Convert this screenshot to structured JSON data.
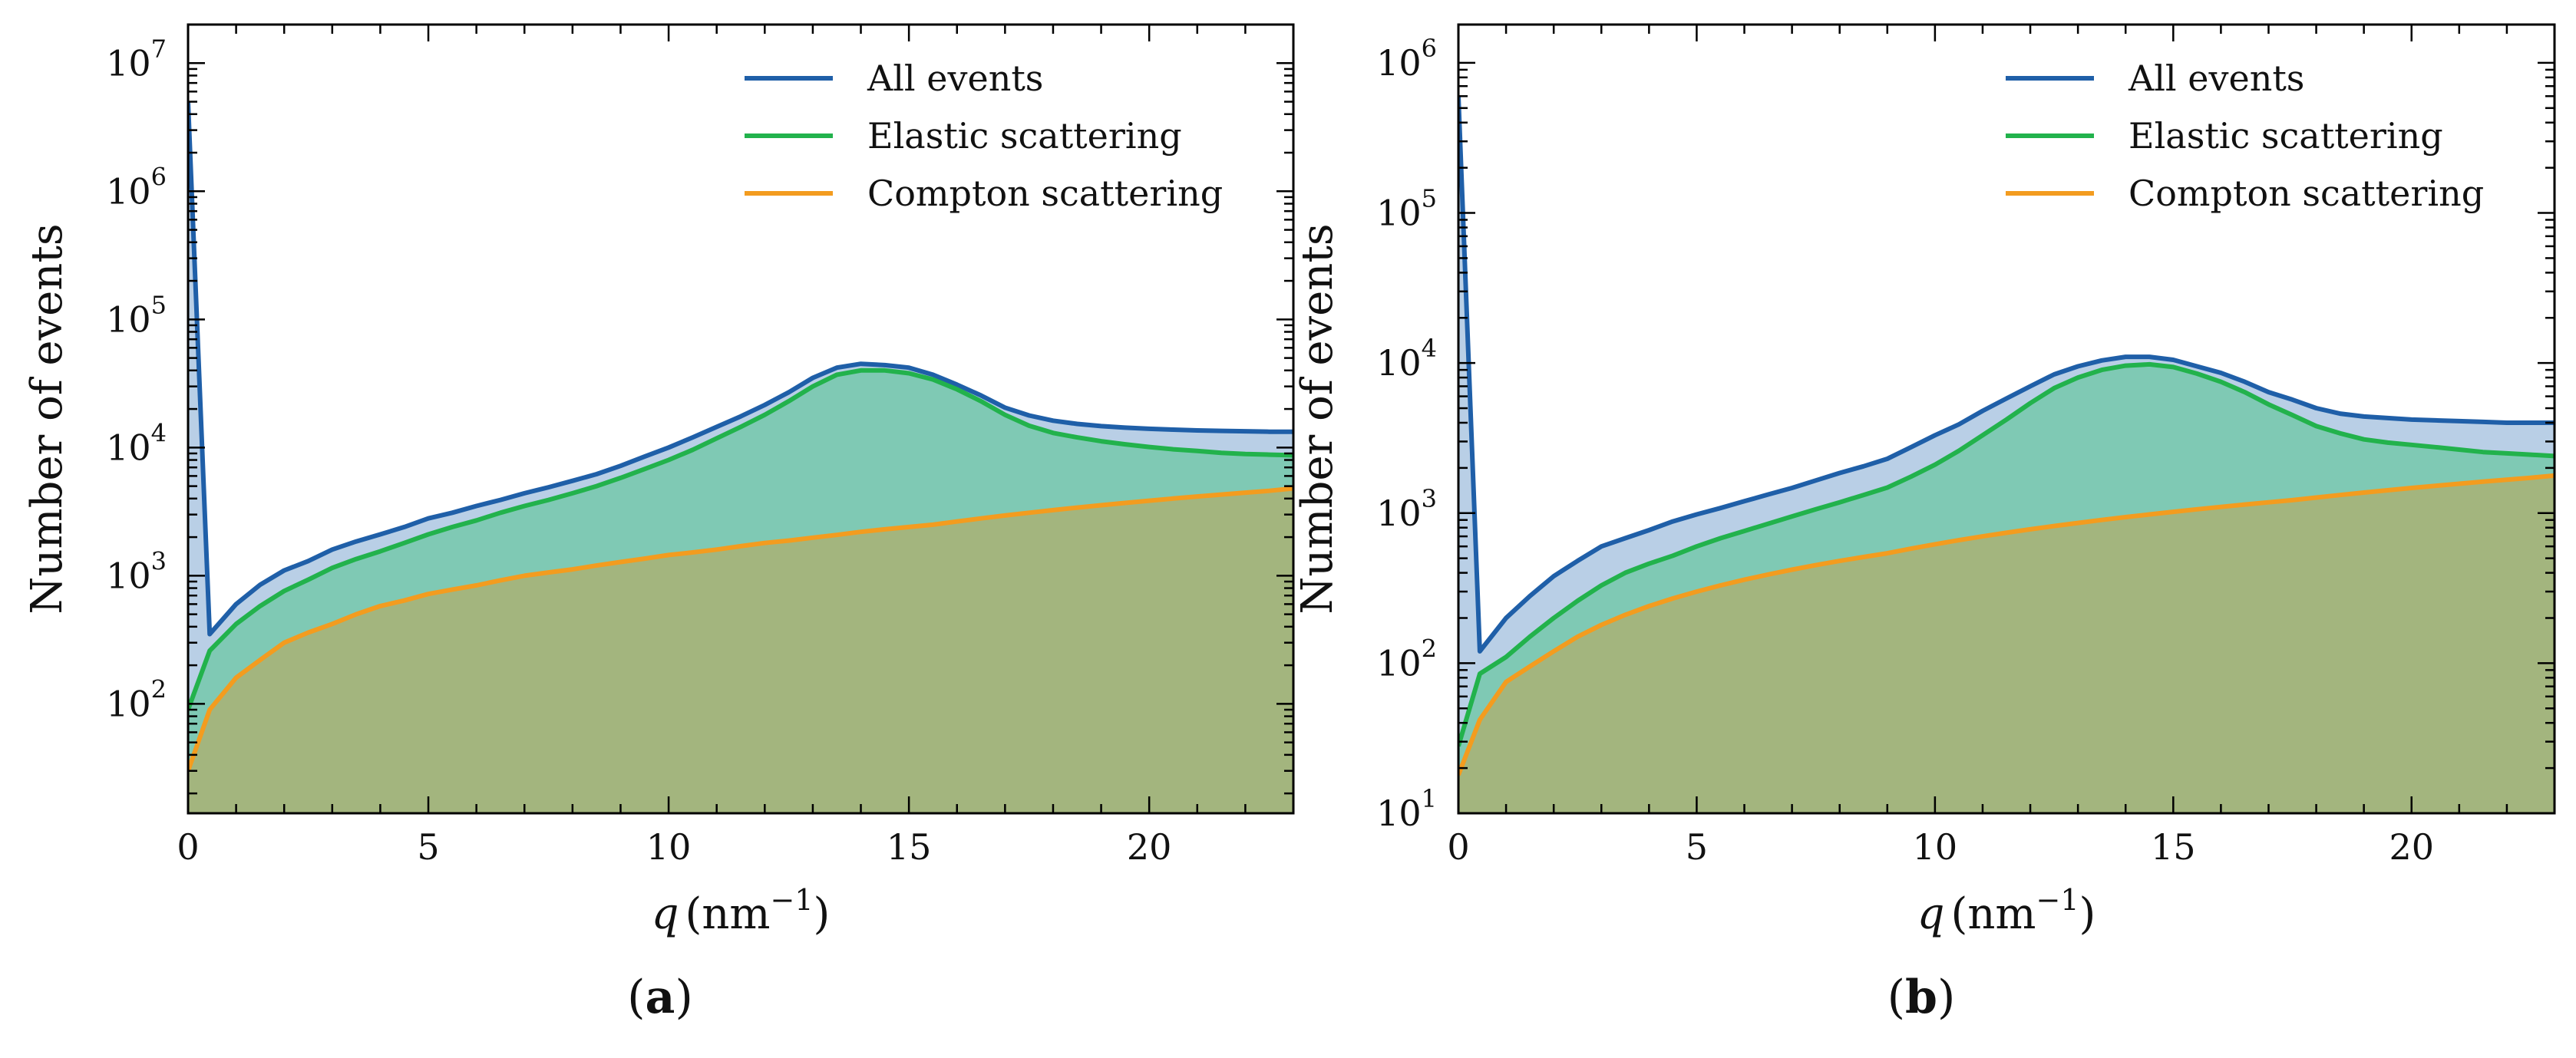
{
  "figure": {
    "panels": [
      "a",
      "b"
    ]
  },
  "colors": {
    "all_events": "#1f5fa8",
    "elastic": "#22b24c",
    "compton": "#f39c1f",
    "fill_all": "#b9cfe6",
    "fill_elastic": "#7fc9b4",
    "fill_compton": "#a3b57e"
  },
  "chart_data": [
    {
      "type": "line",
      "panel_label": "a",
      "title": "",
      "xlabel_var": "q",
      "xlabel_unit": "nm",
      "xlabel_exp": "−1",
      "ylabel": "Number of events",
      "xlim": [
        0,
        23
      ],
      "ylim": [
        14,
        20000000
      ],
      "yscale": "log",
      "xticks": [
        0,
        5,
        10,
        15,
        20
      ],
      "xtick_labels": [
        "0",
        "5",
        "10",
        "15",
        "20"
      ],
      "yticks": [
        100,
        1000,
        10000,
        100000,
        1000000,
        10000000
      ],
      "ytick_labels": [
        {
          "base": "10",
          "exp": "2"
        },
        {
          "base": "10",
          "exp": "3"
        },
        {
          "base": "10",
          "exp": "4"
        },
        {
          "base": "10",
          "exp": "5"
        },
        {
          "base": "10",
          "exp": "6"
        },
        {
          "base": "10",
          "exp": "7"
        }
      ],
      "legend_position": "top-right",
      "series": [
        {
          "name": "All events",
          "color_key": "all_events",
          "x": [
            0,
            0.45,
            1.0,
            1.5,
            2.0,
            2.5,
            3.0,
            3.5,
            4.0,
            4.5,
            5.0,
            5.5,
            6.0,
            6.5,
            7.0,
            7.5,
            8.0,
            8.5,
            9.0,
            9.5,
            10.0,
            10.5,
            11.0,
            11.5,
            12.0,
            12.5,
            13.0,
            13.5,
            14.0,
            14.5,
            15.0,
            15.5,
            16.0,
            16.5,
            17.0,
            17.5,
            18.0,
            18.5,
            19.0,
            19.5,
            20.0,
            20.5,
            21.0,
            21.5,
            22.0,
            22.5,
            23.0
          ],
          "y": [
            5000000,
            350,
            600,
            850,
            1100,
            1300,
            1600,
            1850,
            2100,
            2400,
            2800,
            3100,
            3500,
            3900,
            4400,
            4900,
            5500,
            6200,
            7200,
            8500,
            10000,
            12000,
            14500,
            17500,
            21500,
            27000,
            35000,
            42000,
            45000,
            44000,
            42000,
            37000,
            31000,
            25500,
            20500,
            17800,
            16200,
            15300,
            14700,
            14300,
            14000,
            13800,
            13600,
            13500,
            13400,
            13300,
            13300
          ]
        },
        {
          "name": "Elastic scattering",
          "color_key": "elastic",
          "x": [
            0,
            0.45,
            1.0,
            1.5,
            2.0,
            2.5,
            3.0,
            3.5,
            4.0,
            4.5,
            5.0,
            5.5,
            6.0,
            6.5,
            7.0,
            7.5,
            8.0,
            8.5,
            9.0,
            9.5,
            10.0,
            10.5,
            11.0,
            11.5,
            12.0,
            12.5,
            13.0,
            13.5,
            14.0,
            14.5,
            15.0,
            15.5,
            16.0,
            16.5,
            17.0,
            17.5,
            18.0,
            18.5,
            19.0,
            19.5,
            20.0,
            20.5,
            21.0,
            21.5,
            22.0,
            22.5,
            23.0
          ],
          "y": [
            90,
            260,
            420,
            580,
            760,
            930,
            1150,
            1350,
            1550,
            1800,
            2100,
            2400,
            2700,
            3100,
            3500,
            3900,
            4400,
            5000,
            5800,
            6800,
            8000,
            9600,
            11800,
            14500,
            18000,
            23000,
            30000,
            37000,
            40000,
            40000,
            38000,
            34000,
            28500,
            23000,
            18000,
            14800,
            13000,
            12000,
            11200,
            10600,
            10100,
            9700,
            9400,
            9100,
            8900,
            8800,
            8700
          ]
        },
        {
          "name": "Compton scattering",
          "color_key": "compton",
          "x": [
            0,
            0.45,
            1.0,
            1.5,
            2.0,
            2.5,
            3.0,
            3.5,
            4.0,
            4.5,
            5.0,
            5.5,
            6.0,
            6.5,
            7.0,
            7.5,
            8.0,
            8.5,
            9.0,
            9.5,
            10.0,
            10.5,
            11.0,
            11.5,
            12.0,
            12.5,
            13.0,
            13.5,
            14.0,
            14.5,
            15.0,
            15.5,
            16.0,
            16.5,
            17.0,
            17.5,
            18.0,
            18.5,
            19.0,
            19.5,
            20.0,
            20.5,
            21.0,
            21.5,
            22.0,
            22.5,
            23.0
          ],
          "y": [
            30,
            90,
            160,
            220,
            300,
            360,
            420,
            500,
            580,
            640,
            720,
            780,
            840,
            920,
            1000,
            1060,
            1120,
            1200,
            1280,
            1360,
            1450,
            1520,
            1600,
            1700,
            1800,
            1880,
            1980,
            2080,
            2200,
            2300,
            2400,
            2500,
            2650,
            2800,
            2950,
            3100,
            3250,
            3400,
            3550,
            3700,
            3850,
            4000,
            4150,
            4300,
            4450,
            4600,
            4800
          ]
        }
      ]
    },
    {
      "type": "line",
      "panel_label": "b",
      "title": "",
      "xlabel_var": "q",
      "xlabel_unit": "nm",
      "xlabel_exp": "−1",
      "ylabel": "Number of events",
      "xlim": [
        0,
        23
      ],
      "ylim": [
        10,
        1800000
      ],
      "yscale": "log",
      "xticks": [
        0,
        5,
        10,
        15,
        20
      ],
      "xtick_labels": [
        "0",
        "5",
        "10",
        "15",
        "20"
      ],
      "yticks": [
        10,
        100,
        1000,
        10000,
        100000,
        1000000
      ],
      "ytick_labels": [
        {
          "base": "10",
          "exp": "1"
        },
        {
          "base": "10",
          "exp": "2"
        },
        {
          "base": "10",
          "exp": "3"
        },
        {
          "base": "10",
          "exp": "4"
        },
        {
          "base": "10",
          "exp": "5"
        },
        {
          "base": "10",
          "exp": "6"
        }
      ],
      "legend_position": "top-right",
      "series": [
        {
          "name": "All events",
          "color_key": "all_events",
          "x": [
            0,
            0.45,
            1.0,
            1.5,
            2.0,
            2.5,
            3.0,
            3.5,
            4.0,
            4.5,
            5.0,
            5.5,
            6.0,
            6.5,
            7.0,
            7.5,
            8.0,
            8.5,
            9.0,
            9.5,
            10.0,
            10.5,
            11.0,
            11.5,
            12.0,
            12.5,
            13.0,
            13.5,
            14.0,
            14.5,
            15.0,
            15.5,
            16.0,
            16.5,
            17.0,
            17.5,
            18.0,
            18.5,
            19.0,
            19.5,
            20.0,
            20.5,
            21.0,
            21.5,
            22.0,
            22.5,
            23.0
          ],
          "y": [
            600000,
            120,
            200,
            280,
            380,
            480,
            600,
            680,
            770,
            880,
            980,
            1080,
            1200,
            1330,
            1470,
            1650,
            1850,
            2050,
            2300,
            2750,
            3300,
            3900,
            4800,
            5800,
            7000,
            8400,
            9500,
            10400,
            11000,
            11000,
            10500,
            9500,
            8600,
            7500,
            6400,
            5700,
            5000,
            4600,
            4400,
            4300,
            4200,
            4150,
            4100,
            4050,
            4000,
            4000,
            4000
          ]
        },
        {
          "name": "Elastic scattering",
          "color_key": "elastic",
          "x": [
            0,
            0.45,
            1.0,
            1.5,
            2.0,
            2.5,
            3.0,
            3.5,
            4.0,
            4.5,
            5.0,
            5.5,
            6.0,
            6.5,
            7.0,
            7.5,
            8.0,
            8.5,
            9.0,
            9.5,
            10.0,
            10.5,
            11.0,
            11.5,
            12.0,
            12.5,
            13.0,
            13.5,
            14.0,
            14.5,
            15.0,
            15.5,
            16.0,
            16.5,
            17.0,
            17.5,
            18.0,
            18.5,
            19.0,
            19.5,
            20.0,
            20.5,
            21.0,
            21.5,
            22.0,
            22.5,
            23.0
          ],
          "y": [
            28,
            85,
            110,
            150,
            200,
            260,
            330,
            400,
            460,
            520,
            600,
            680,
            760,
            850,
            950,
            1060,
            1180,
            1320,
            1480,
            1750,
            2100,
            2600,
            3300,
            4200,
            5400,
            6800,
            8000,
            9000,
            9600,
            9800,
            9400,
            8500,
            7500,
            6400,
            5300,
            4500,
            3800,
            3400,
            3100,
            2950,
            2850,
            2750,
            2650,
            2550,
            2500,
            2450,
            2400
          ]
        },
        {
          "name": "Compton scattering",
          "color_key": "compton",
          "x": [
            0,
            0.45,
            1.0,
            1.5,
            2.0,
            2.5,
            3.0,
            3.5,
            4.0,
            4.5,
            5.0,
            5.5,
            6.0,
            6.5,
            7.0,
            7.5,
            8.0,
            8.5,
            9.0,
            9.5,
            10.0,
            10.5,
            11.0,
            11.5,
            12.0,
            12.5,
            13.0,
            13.5,
            14.0,
            14.5,
            15.0,
            15.5,
            16.0,
            16.5,
            17.0,
            17.5,
            18.0,
            18.5,
            19.0,
            19.5,
            20.0,
            20.5,
            21.0,
            21.5,
            22.0,
            22.5,
            23.0
          ],
          "y": [
            18,
            42,
            75,
            95,
            120,
            150,
            180,
            210,
            240,
            270,
            300,
            330,
            360,
            390,
            420,
            450,
            480,
            510,
            540,
            580,
            620,
            660,
            700,
            740,
            780,
            820,
            860,
            900,
            940,
            980,
            1020,
            1060,
            1100,
            1140,
            1180,
            1220,
            1270,
            1320,
            1370,
            1420,
            1470,
            1520,
            1570,
            1620,
            1670,
            1720,
            1780
          ]
        }
      ]
    }
  ]
}
